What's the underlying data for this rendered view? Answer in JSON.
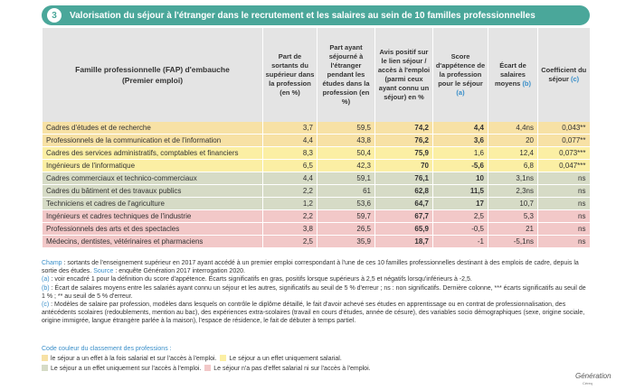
{
  "header": {
    "number": "3",
    "title": "Valorisation du séjour à l'étranger dans le recrutement et les salaires au sein de 10 familles professionnelles"
  },
  "columns": {
    "famille": "Famille professionnelle (FAP) d'embauche",
    "famille_sub": "(Premier emploi)",
    "part_sortants": "Part de sortants du supérieur dans la profession (en %)",
    "part_sejour": "Part ayant séjourné à l'étranger pendant les études dans la profession (en %)",
    "avis": "Avis positif sur le lien séjour / accès à l'emploi (parmi ceux ayant connu un séjour) en %",
    "score_prefix": "Score d'appétence de la profession pour le séjour",
    "score_ref": "(a)",
    "ecart_prefix": "Écart de salaires moyens",
    "ecart_ref": "(b)",
    "coef_prefix": "Coefficient du séjour",
    "coef_ref": "(c)"
  },
  "rows": [
    {
      "name": "Cadres d'études et de recherche",
      "part_sortants": "3,7",
      "part_sejour": "59,5",
      "avis": "74,2",
      "score": "4,4",
      "score_bold": true,
      "ecart": "4,4ns",
      "coef": "0,043**",
      "color": "both",
      "group_start": true
    },
    {
      "name": "Professionnels de la communication et de l'information",
      "part_sortants": "4,4",
      "part_sejour": "43,8",
      "avis": "76,2",
      "score": "3,6",
      "score_bold": true,
      "ecart": "20",
      "coef": "0,077**",
      "color": "both",
      "group_start": false
    },
    {
      "name": "Cadres des services administratifs, comptables et financiers",
      "part_sortants": "8,3",
      "part_sejour": "50,4",
      "avis": "75,9",
      "score": "1,6",
      "score_bold": false,
      "ecart": "12,4",
      "coef": "0,073***",
      "color": "sal",
      "group_start": false
    },
    {
      "name": "Ingénieurs de l'informatique",
      "part_sortants": "6,5",
      "part_sejour": "42,3",
      "avis": "70",
      "score": "-5,6",
      "score_bold": true,
      "ecart": "6,8",
      "coef": "0,047***",
      "color": "sal",
      "group_start": false
    },
    {
      "name": "Cadres commerciaux et technico-commerciaux",
      "part_sortants": "4,4",
      "part_sejour": "59,1",
      "avis": "76,1",
      "score": "10",
      "score_bold": true,
      "ecart": "3,1ns",
      "coef": "ns",
      "color": "acc",
      "group_start": true
    },
    {
      "name": "Cadres du bâtiment et des travaux publics",
      "part_sortants": "2,2",
      "part_sejour": "61",
      "avis": "62,8",
      "score": "11,5",
      "score_bold": true,
      "ecart": "2,3ns",
      "coef": "ns",
      "color": "acc",
      "group_start": false
    },
    {
      "name": "Techniciens et cadres de l'agriculture",
      "part_sortants": "1,2",
      "part_sejour": "53,6",
      "avis": "64,7",
      "score": "17",
      "score_bold": true,
      "ecart": "10,7",
      "coef": "ns",
      "color": "acc",
      "group_start": false
    },
    {
      "name": "Ingénieurs et cadres techniques de l'industrie",
      "part_sortants": "2,2",
      "part_sejour": "59,7",
      "avis": "67,7",
      "score": "2,5",
      "score_bold": false,
      "ecart": "5,3",
      "coef": "ns",
      "color": "none",
      "group_start": true
    },
    {
      "name": "Professionnels des arts et des spectacles",
      "part_sortants": "3,8",
      "part_sejour": "26,5",
      "avis": "65,9",
      "score": "-0,5",
      "score_bold": false,
      "ecart": "21",
      "coef": "ns",
      "color": "none",
      "group_start": false
    },
    {
      "name": "Médecins, dentistes, vétérinaires et pharmaciens",
      "part_sortants": "2,5",
      "part_sejour": "35,9",
      "avis": "18,7",
      "score": "-1",
      "score_bold": false,
      "ecart": "-5,1ns",
      "coef": "ns",
      "color": "none",
      "group_start": false
    }
  ],
  "notes": {
    "champ_label": "Champ",
    "champ_text": " : sortants de l'enseignement supérieur en 2017 ayant accédé à un premier emploi correspondant à l'une de ces 10 familles professionnelles destinant à des emplois de cadre, depuis la sortie des études. ",
    "source_label": "Source",
    "source_text": " : enquête Génération 2017 interrogation 2020.",
    "a_label": "(a)",
    "a_text": " : voir encadré 1 pour la définition du score d'appétence. Écarts significatifs en gras, positifs lorsque supérieurs à 2,5 et négatifs lorsqu'inférieurs à -2,5.",
    "b_label": "(b)",
    "b_text": " : Écart de salaires moyens entre les salariés ayant connu un séjour et les autres, significatifs au seuil de 5 % d'erreur ; ns : non significatifs. Dernière colonne, *** écarts significatifs au seuil de 1 % ; ** au seuil de 5 % d'erreur.",
    "c_label": "(c)",
    "c_text": " : Modèles de salaire par profession, modèles dans lesquels on contrôle le diplôme détaillé, le fait d'avoir achevé ses études en apprentissage ou en contrat de professionnalisation, des antécédents scolaires (redoublements, mention au bac), des expériences extra-scolaires (travail en cours d'études, année de césure), des variables socio démographiques (sexe, origine sociale, origine immigrée, langue étrangère parlée à la maison), l'espace de résidence, le fait de débuter à temps partiel."
  },
  "legend": {
    "title": "Code couleur du classement des professions :",
    "both": "le séjour a un effet à la fois salarial et sur l'accès à l'emploi.",
    "sal": "Le séjour a un effet uniquement salarial.",
    "acc": "Le séjour a un effet uniquement sur l'accès à l'emploi.",
    "none": "Le séjour n'a pas d'effet salarial ni sur l'accès à l'emploi."
  },
  "colors": {
    "header": "#4aa79a",
    "both": "#f7e1a5",
    "sal": "#fbefa4",
    "acc": "#d6dbc6",
    "none": "#f2c8c8",
    "note_label": "#3a8fc9"
  },
  "logo": {
    "name": "Génération",
    "sub": "Céreq"
  }
}
